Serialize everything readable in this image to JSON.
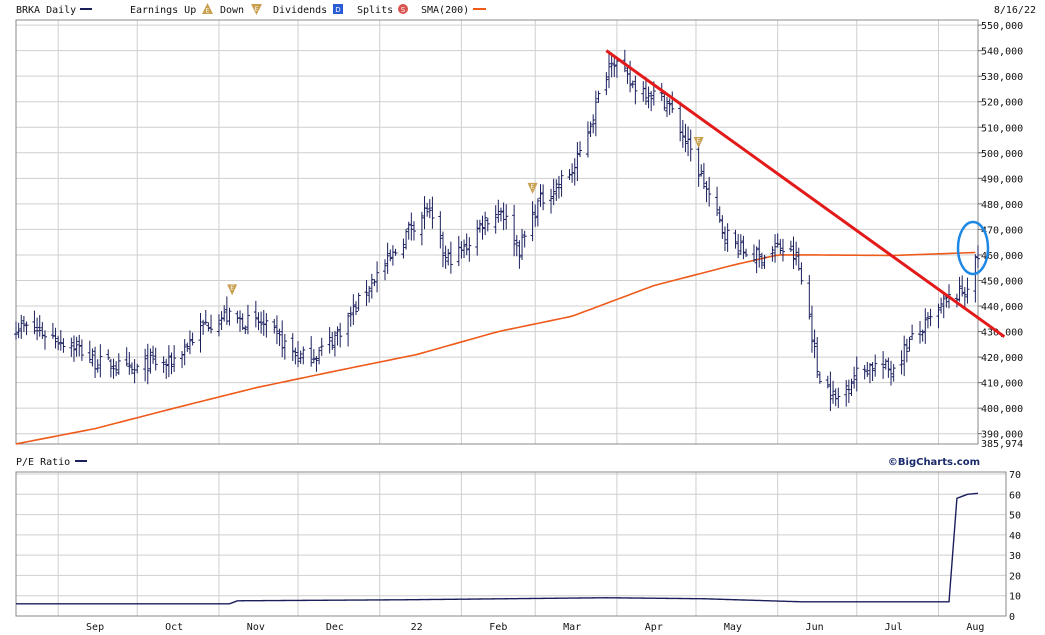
{
  "legend": {
    "symbol": "BRKA Daily",
    "earnings_up": "Earnings Up",
    "down": "Down",
    "dividends": "Dividends",
    "splits": "Splits",
    "sma": "SMA(200)",
    "date": "8/16/22"
  },
  "lower_panel": {
    "title": "P/E Ratio",
    "brand": "©BigCharts.com"
  },
  "colors": {
    "price": "#1a1f5c",
    "sma": "#ee5a1a",
    "trend": "#e31a1a",
    "highlight": "#1e88e5",
    "pe": "#1a1f5c",
    "marker": "#c8a050"
  },
  "chart_data": [
    {
      "type": "ohlc",
      "title": "BRKA Daily",
      "y_ticks": [
        "550,000",
        "540,000",
        "530,000",
        "520,000",
        "510,000",
        "500,000",
        "490,000",
        "480,000",
        "470,000",
        "460,000",
        "450,000",
        "440,000",
        "430,000",
        "420,000",
        "410,000",
        "400,000",
        "390,000"
      ],
      "y_min_label": "385,974",
      "ylim": [
        385974,
        552000
      ],
      "x_tick_labels": [
        "Sep",
        "Oct",
        "Nov",
        "Dec",
        "22",
        "Feb",
        "Mar",
        "Apr",
        "May",
        "Jun",
        "Jul",
        "Aug"
      ],
      "close_anchors": [
        [
          "2021-08-17",
          432000
        ],
        [
          "2021-08-25",
          430000
        ],
        [
          "2021-09-01",
          427000
        ],
        [
          "2021-09-08",
          424000
        ],
        [
          "2021-09-15",
          418000
        ],
        [
          "2021-09-22",
          417000
        ],
        [
          "2021-09-29",
          414000
        ],
        [
          "2021-10-06",
          418000
        ],
        [
          "2021-10-13",
          417000
        ],
        [
          "2021-10-20",
          425000
        ],
        [
          "2021-10-27",
          433000
        ],
        [
          "2021-11-03",
          436000
        ],
        [
          "2021-11-10",
          434000
        ],
        [
          "2021-11-17",
          433000
        ],
        [
          "2021-11-24",
          427000
        ],
        [
          "2021-12-01",
          420000
        ],
        [
          "2021-12-08",
          421000
        ],
        [
          "2021-12-15",
          428000
        ],
        [
          "2021-12-22",
          438000
        ],
        [
          "2021-12-29",
          450000
        ],
        [
          "2022-01-05",
          458000
        ],
        [
          "2022-01-12",
          470000
        ],
        [
          "2022-01-19",
          478000
        ],
        [
          "2022-01-26",
          458000
        ],
        [
          "2022-02-02",
          462000
        ],
        [
          "2022-02-09",
          473000
        ],
        [
          "2022-02-16",
          478000
        ],
        [
          "2022-02-23",
          462000
        ],
        [
          "2022-03-02",
          480000
        ],
        [
          "2022-03-09",
          487000
        ],
        [
          "2022-03-16",
          494000
        ],
        [
          "2022-03-23",
          515000
        ],
        [
          "2022-03-30",
          538000
        ],
        [
          "2022-04-06",
          527000
        ],
        [
          "2022-04-13",
          524000
        ],
        [
          "2022-04-20",
          520000
        ],
        [
          "2022-04-27",
          505000
        ],
        [
          "2022-05-04",
          488000
        ],
        [
          "2022-05-11",
          470000
        ],
        [
          "2022-05-18",
          462000
        ],
        [
          "2022-05-25",
          459000
        ],
        [
          "2022-06-01",
          463000
        ],
        [
          "2022-06-08",
          459000
        ],
        [
          "2022-06-13",
          436000
        ],
        [
          "2022-06-16",
          415000
        ],
        [
          "2022-06-23",
          403000
        ],
        [
          "2022-06-30",
          413000
        ],
        [
          "2022-07-07",
          417000
        ],
        [
          "2022-07-14",
          415000
        ],
        [
          "2022-07-21",
          426000
        ],
        [
          "2022-07-28",
          433000
        ],
        [
          "2022-08-04",
          442000
        ],
        [
          "2022-08-11",
          446000
        ],
        [
          "2022-08-16",
          459000
        ]
      ],
      "sma200_anchors": [
        [
          "2021-08-16",
          386000
        ],
        [
          "2021-09-15",
          392000
        ],
        [
          "2021-10-15",
          400000
        ],
        [
          "2021-11-15",
          408000
        ],
        [
          "2021-12-15",
          414500
        ],
        [
          "2022-01-15",
          421000
        ],
        [
          "2022-02-15",
          430000
        ],
        [
          "2022-03-15",
          436000
        ],
        [
          "2022-04-15",
          448000
        ],
        [
          "2022-05-15",
          456000
        ],
        [
          "2022-06-01",
          460000
        ],
        [
          "2022-06-15",
          460000
        ],
        [
          "2022-07-15",
          459800
        ],
        [
          "2022-08-16",
          461000
        ]
      ],
      "trendline": {
        "start": [
          "2022-03-28",
          540000
        ],
        "end": [
          "2022-08-26",
          428000
        ]
      },
      "event_markers": [
        {
          "kind": "earnings",
          "symbol": "E",
          "date": "2021-11-06"
        },
        {
          "kind": "earnings",
          "symbol": "E",
          "date": "2022-02-28"
        },
        {
          "kind": "earnings",
          "symbol": "E",
          "date": "2022-05-02"
        }
      ]
    },
    {
      "type": "line",
      "title": "P/E Ratio",
      "y_ticks": [
        "70",
        "60",
        "50",
        "40",
        "30",
        "20",
        "10",
        "0"
      ],
      "ylim": [
        0,
        70
      ],
      "anchors": [
        [
          "2021-08-16",
          6
        ],
        [
          "2021-11-05",
          6
        ],
        [
          "2021-11-08",
          7.5
        ],
        [
          "2022-01-10",
          8
        ],
        [
          "2022-03-28",
          9
        ],
        [
          "2022-05-04",
          8.5
        ],
        [
          "2022-06-10",
          7
        ],
        [
          "2022-08-05",
          7
        ],
        [
          "2022-08-08",
          58
        ],
        [
          "2022-08-12",
          60
        ],
        [
          "2022-08-16",
          60.5
        ]
      ]
    }
  ]
}
